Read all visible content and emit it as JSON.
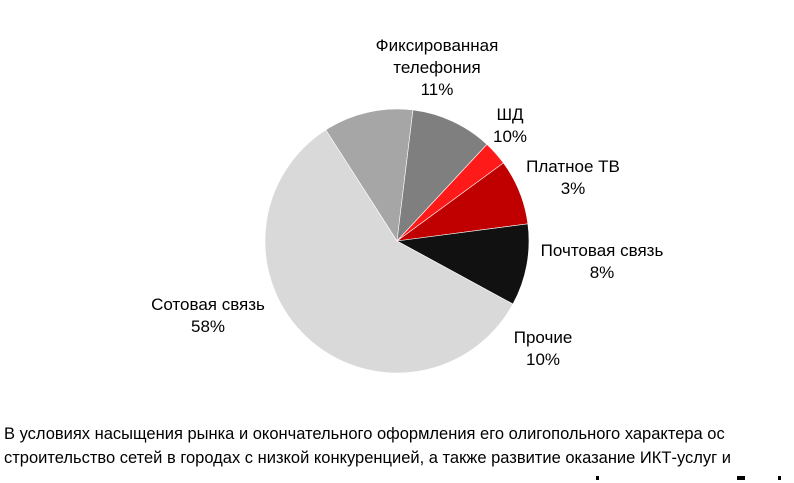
{
  "chart_data": {
    "type": "pie",
    "slices": [
      {
        "label": "Фиксированная телефония",
        "value": 11,
        "display": "11%",
        "color": "#a6a6a6"
      },
      {
        "label": "ШД",
        "value": 10,
        "display": "10%",
        "color": "#7f7f7f"
      },
      {
        "label": "Платное ТВ",
        "value": 3,
        "display": "3%",
        "color": "#ff1a1a"
      },
      {
        "label": "Почтовая связь",
        "value": 8,
        "display": "8%",
        "color": "#c00000"
      },
      {
        "label": "Прочие",
        "value": 10,
        "display": "10%",
        "color": "#111111"
      },
      {
        "label": "Сотовая связь",
        "value": 58,
        "display": "58%",
        "color": "#d9d9d9"
      }
    ]
  },
  "body_text": {
    "line1": "В условиях насыщения рынка и окончательного оформления его олигопольного характера ос",
    "line2": "строительство сетей в городах с низкой конкуренцией, а также развитие оказание ИКТ-услуг и"
  }
}
